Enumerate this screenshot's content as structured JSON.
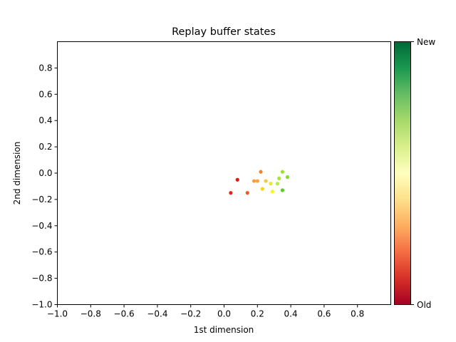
{
  "chart_data": {
    "type": "scatter",
    "title": "Replay buffer states",
    "xlabel": "1st dimension",
    "ylabel": "2nd dimension",
    "xlim": [
      -1.0,
      1.0
    ],
    "ylim": [
      -1.0,
      1.0
    ],
    "xticks": [
      -1.0,
      -0.8,
      -0.6,
      -0.4,
      -0.2,
      0.0,
      0.2,
      0.4,
      0.6,
      0.8
    ],
    "xtick_labels": [
      "−1.0",
      "−0.8",
      "−0.6",
      "−0.4",
      "−0.2",
      "0.0",
      "0.2",
      "0.4",
      "0.6",
      "0.8"
    ],
    "yticks": [
      0.8,
      0.6,
      0.4,
      0.2,
      0.0,
      -0.2,
      -0.4,
      -0.6,
      -0.8,
      -1.0
    ],
    "ytick_labels": [
      "0.8",
      "0.6",
      "0.4",
      "0.2",
      "0.0",
      "−0.2",
      "−0.4",
      "−0.6",
      "−0.8",
      "−1.0"
    ],
    "grid": false,
    "colormap": {
      "name": "RdYlGn",
      "stops": [
        "#a50026",
        "#d73027",
        "#f46d43",
        "#fdae61",
        "#fee08b",
        "#ffffbf",
        "#d9ef8b",
        "#a6d96a",
        "#66bd63",
        "#1a9850",
        "#006837"
      ],
      "label_top": "New",
      "label_bottom": "Old"
    },
    "points": [
      {
        "x": 0.04,
        "y": -0.15,
        "color": "#e8250e"
      },
      {
        "x": 0.08,
        "y": -0.05,
        "color": "#e41a0c"
      },
      {
        "x": 0.14,
        "y": -0.15,
        "color": "#f0561f"
      },
      {
        "x": 0.18,
        "y": -0.06,
        "color": "#fb9a3a"
      },
      {
        "x": 0.2,
        "y": -0.06,
        "color": "#fca43f"
      },
      {
        "x": 0.22,
        "y": 0.01,
        "color": "#f7822a"
      },
      {
        "x": 0.23,
        "y": -0.12,
        "color": "#f5d41a"
      },
      {
        "x": 0.25,
        "y": -0.06,
        "color": "#fbc63a"
      },
      {
        "x": 0.28,
        "y": -0.08,
        "color": "#e6e838"
      },
      {
        "x": 0.29,
        "y": -0.14,
        "color": "#f7f71a"
      },
      {
        "x": 0.32,
        "y": -0.08,
        "color": "#b8ee3c"
      },
      {
        "x": 0.33,
        "y": -0.04,
        "color": "#a6e53a"
      },
      {
        "x": 0.35,
        "y": 0.01,
        "color": "#9be22e"
      },
      {
        "x": 0.35,
        "y": -0.13,
        "color": "#5acb2a"
      },
      {
        "x": 0.38,
        "y": -0.03,
        "color": "#86dc2c"
      }
    ]
  }
}
